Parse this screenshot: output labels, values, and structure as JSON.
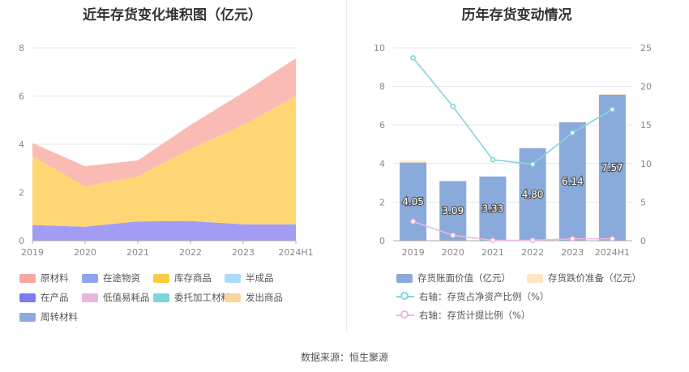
{
  "left_title": "近年存货变化堆积图（亿元）",
  "right_title": "历年存货变动情况",
  "source": "数据来源：恒生聚源",
  "chart_data": [
    {
      "type": "area",
      "stacked": true,
      "x": [
        "2019",
        "2020",
        "2021",
        "2022",
        "2023",
        "2024H1"
      ],
      "ylim": [
        0,
        8
      ],
      "yticks": [
        "0",
        "2",
        "4",
        "6",
        "8"
      ],
      "series": [
        {
          "name": "周转材料",
          "color": "#a29cf4",
          "values": [
            0.65,
            0.58,
            0.8,
            0.82,
            0.68,
            0.68
          ]
        },
        {
          "name": "库存商品",
          "color": "#fed673",
          "values": [
            2.85,
            1.67,
            1.87,
            2.98,
            4.12,
            5.32
          ]
        },
        {
          "name": "原材料",
          "color": "#fabbb5",
          "values": [
            0.55,
            0.84,
            0.66,
            1.0,
            1.34,
            1.57
          ]
        }
      ],
      "legend": [
        {
          "name": "原材料",
          "color": "#f8a79e"
        },
        {
          "name": "在途物资",
          "color": "#8fa3f3"
        },
        {
          "name": "库存商品",
          "color": "#fccb45"
        },
        {
          "name": "半成品",
          "color": "#a9dcf7"
        },
        {
          "name": "在产品",
          "color": "#7b7cef"
        },
        {
          "name": "低值易耗品",
          "color": "#e8b6df"
        },
        {
          "name": "委托加工材料",
          "color": "#7fd4d7"
        },
        {
          "name": "发出商品",
          "color": "#fbd39b"
        },
        {
          "name": "周转材料",
          "color": "#8fa9dc"
        }
      ]
    },
    {
      "type": "bar",
      "x": [
        "2019",
        "2020",
        "2021",
        "2022",
        "2023",
        "2024H1"
      ],
      "ylim_left": [
        0,
        10
      ],
      "yticks_left": [
        "0",
        "2",
        "4",
        "6",
        "8",
        "10"
      ],
      "ylim_right": [
        0,
        25
      ],
      "yticks_right": [
        "0",
        "5",
        "10",
        "15",
        "20",
        "25"
      ],
      "bars": [
        {
          "name": "存货账面价值（亿元）",
          "color": "#8aaadc",
          "values": [
            4.05,
            3.09,
            3.33,
            4.8,
            6.14,
            7.57
          ],
          "labels": [
            "4.05",
            "3.09",
            "3.33",
            "4.80",
            "6.14",
            "7.57"
          ]
        },
        {
          "name": "存货跌价准备（亿元）",
          "color": "#fde6c2",
          "values": [
            0.1,
            0.02,
            0.0,
            0.0,
            0.03,
            0.03
          ]
        }
      ],
      "lines": [
        {
          "name": "右轴：存货占净资产比例（%）",
          "color": "#86d4dc",
          "axis": "right",
          "values": [
            23.7,
            17.4,
            10.5,
            9.9,
            14.0,
            17.0
          ]
        },
        {
          "name": "右轴：存货计提比例（%）",
          "color": "#eab8dc",
          "axis": "right",
          "values": [
            2.5,
            0.7,
            0.05,
            0.05,
            0.25,
            0.25
          ]
        }
      ]
    }
  ]
}
